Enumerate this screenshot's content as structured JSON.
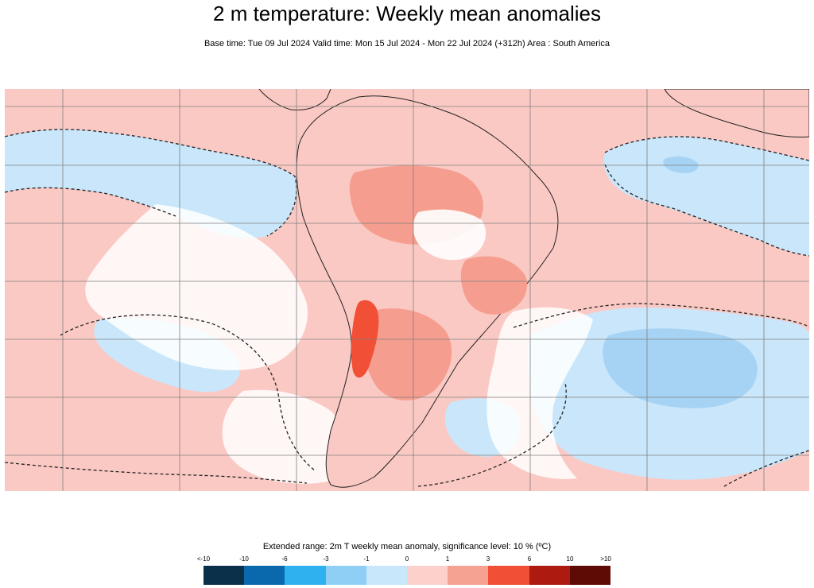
{
  "title": "2 m temperature: Weekly mean anomalies",
  "subtitle": "Base time: Tue 09 Jul 2024 Valid time: Mon 15 Jul 2024 - Mon 22 Jul 2024 (+312h) Area : South America",
  "map": {
    "region": "South America",
    "colors": {
      "ocean_warm": "#fbc9c4",
      "ocean_cool": "#c9e6fa",
      "warm_anomaly": "#f59e8f",
      "strong_warm": "#f24f37",
      "cool_anomaly": "#a6d3f4",
      "land_white": "#ffffff",
      "grid": "#7f7f7f"
    }
  },
  "legend": {
    "title": "Extended range: 2m T weekly mean anomaly, significance level: 10 % (ºC)",
    "ticks": [
      "<-10",
      "-10",
      "-6",
      "-3",
      "-1",
      "0",
      "1",
      "3",
      "6",
      "10",
      ">10"
    ],
    "colors": [
      "#0b3049",
      "#0a69ad",
      "#2fb1ef",
      "#8fcff5",
      "#c8e7fb",
      "#fcd0cb",
      "#f5a293",
      "#f24f37",
      "#ad1a0f",
      "#5e0b06"
    ]
  }
}
